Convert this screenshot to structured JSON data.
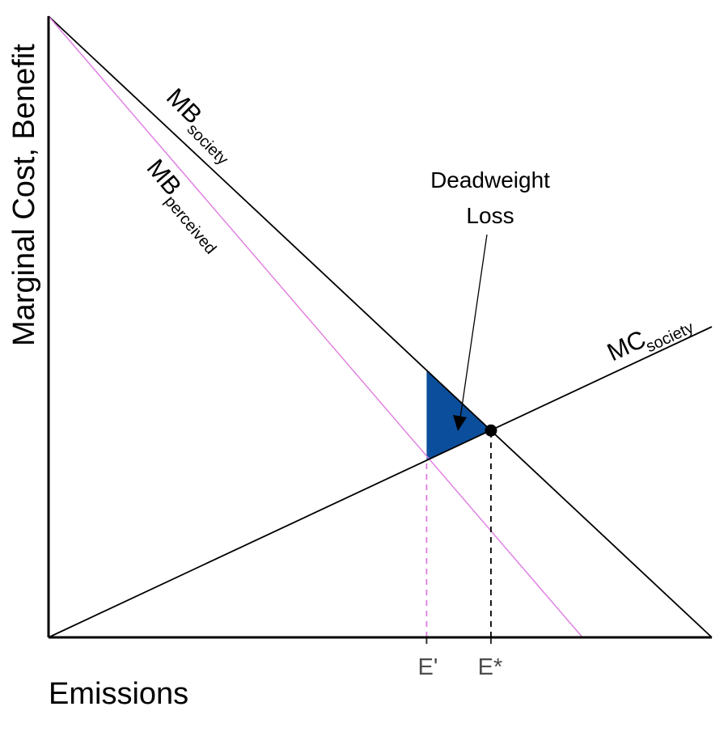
{
  "chart_data": {
    "type": "line",
    "xlabel": "Emissions",
    "ylabel": "Marginal Cost, Benefit",
    "xlim": [
      0,
      100
    ],
    "ylim": [
      0,
      100
    ],
    "grid": false,
    "series": [
      {
        "name": "MB society",
        "label_main": "MB",
        "label_sub": "society",
        "color": "#000000",
        "x": [
          0,
          100
        ],
        "y": [
          100,
          0
        ]
      },
      {
        "name": "MB perceived",
        "label_main": "MB",
        "label_sub": "perceived",
        "color": "#e07be0",
        "x": [
          0,
          80.5
        ],
        "y": [
          100,
          0
        ]
      },
      {
        "name": "MC society",
        "label_main": "MC",
        "label_sub": "society",
        "color": "#000000",
        "x": [
          0,
          100
        ],
        "y": [
          0,
          50
        ]
      }
    ],
    "ticks": [
      {
        "label": "E'",
        "x": 57,
        "y": 28.5,
        "color": "#e07be0"
      },
      {
        "label": "E*",
        "x": 66.7,
        "y": 33.3,
        "color": "#000000"
      }
    ],
    "equilibrium": {
      "x": 66.7,
      "y": 33.3
    },
    "deadweight_loss": {
      "label_line1": "Deadweight",
      "label_line2": "Loss",
      "vertices": [
        [
          57,
          43
        ],
        [
          57,
          28.5
        ],
        [
          66.7,
          33.3
        ]
      ],
      "fill": "#0b4f9c"
    }
  }
}
